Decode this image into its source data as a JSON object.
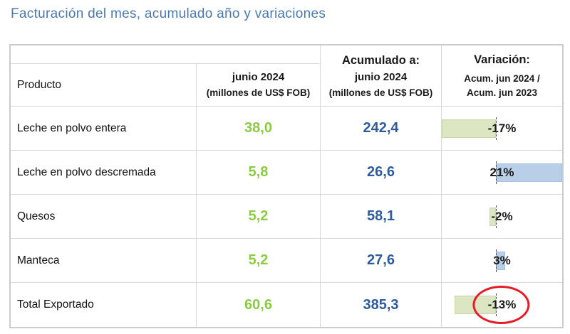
{
  "page": {
    "title": "Facturación del mes, acumulado año y variaciones"
  },
  "colors": {
    "title": "#4a79af",
    "month_value": "#8bcb43",
    "accum_value": "#2e5c9e",
    "variation_text": "#1a1a1a",
    "bar_negative": "#dce6c2",
    "bar_negative_border": "#c9d7a6",
    "bar_positive": "#b9cfe8",
    "bar_positive_border": "#a6c0de",
    "grid_border": "#d8d8d8",
    "circle_red": "#e41e26"
  },
  "table": {
    "header": {
      "product": "Producto",
      "month_line1": "junio 2024",
      "month_line2": "(millones de US$ FOB)",
      "accum_title": "Acumulado a:",
      "accum_line1": "junio 2024",
      "accum_line2": "(millones de US$ FOB)",
      "variation_title": "Variación:",
      "variation_line1": "Acum. jun 2024 /",
      "variation_line2": "Acum. jun 2023"
    },
    "rows": [
      {
        "product": "Leche en polvo entera",
        "month": "38,0",
        "accum": "242,4",
        "variation_label": "-17%",
        "variation_value": -17,
        "circled": false
      },
      {
        "product": "Leche en polvo descremada",
        "month": "5,8",
        "accum": "26,6",
        "variation_label": "21%",
        "variation_value": 21,
        "circled": false
      },
      {
        "product": "Quesos",
        "month": "5,2",
        "accum": "58,1",
        "variation_label": "-2%",
        "variation_value": -2,
        "circled": false
      },
      {
        "product": "Manteca",
        "month": "5,2",
        "accum": "27,6",
        "variation_label": "3%",
        "variation_value": 3,
        "circled": false
      },
      {
        "product": "Total Exportado",
        "month": "60,6",
        "accum": "385,3",
        "variation_label": "-13%",
        "variation_value": -13,
        "circled": true
      }
    ],
    "databar": {
      "min": -17,
      "max": 21
    }
  },
  "chart_data": {
    "type": "table",
    "title": "Facturación del mes, acumulado año y variaciones",
    "columns": [
      "Producto",
      "junio 2024 (millones de US$ FOB)",
      "Acumulado a: junio 2024 (millones de US$ FOB)",
      "Variación: Acum. jun 2024 / Acum. jun 2023"
    ],
    "rows": [
      [
        "Leche en polvo entera",
        38.0,
        242.4,
        "-17%"
      ],
      [
        "Leche en polvo descremada",
        5.8,
        26.6,
        "21%"
      ],
      [
        "Quesos",
        5.2,
        58.1,
        "-2%"
      ],
      [
        "Manteca",
        5.2,
        27.6,
        "3%"
      ],
      [
        "Total Exportado",
        60.6,
        385.3,
        "-13%"
      ]
    ],
    "databars": {
      "series": "Variación %",
      "values": [
        -17,
        21,
        -2,
        3,
        -13
      ],
      "axis_min": -17,
      "axis_max": 21,
      "negative_bar_color": "#dce6c2",
      "positive_bar_color": "#b9cfe8"
    },
    "annotation": "red ellipse circling the -13% Total Exportado variation"
  }
}
